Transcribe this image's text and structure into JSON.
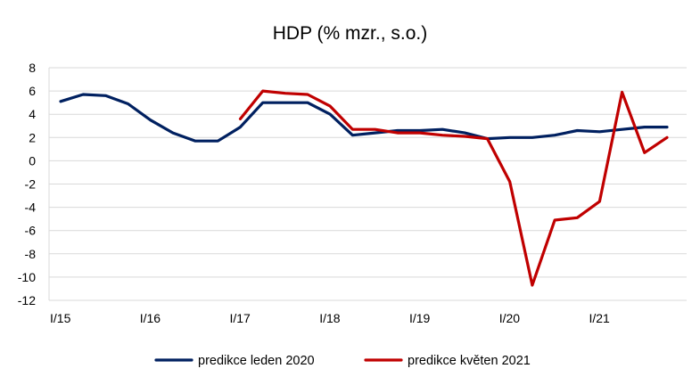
{
  "chart_data": {
    "type": "line",
    "title": "HDP (% mzr., s.o.)",
    "xlabel": "",
    "ylabel": "",
    "ylim": [
      -12,
      8
    ],
    "yticks": [
      8,
      6,
      4,
      2,
      0,
      -2,
      -4,
      -6,
      -8,
      -10,
      -12
    ],
    "grid": true,
    "legend_position": "bottom",
    "categories": [
      "I/15",
      "II/15",
      "III/15",
      "IV/15",
      "I/16",
      "II/16",
      "III/16",
      "IV/16",
      "I/17",
      "II/17",
      "III/17",
      "IV/17",
      "I/18",
      "II/18",
      "III/18",
      "IV/18",
      "I/19",
      "II/19",
      "III/19",
      "IV/19",
      "I/20",
      "II/20",
      "III/20",
      "IV/20",
      "I/21",
      "II/21",
      "III/21",
      "IV/21"
    ],
    "x_tick_labels": [
      {
        "index": 0,
        "label": "I/15"
      },
      {
        "index": 4,
        "label": "I/16"
      },
      {
        "index": 8,
        "label": "I/17"
      },
      {
        "index": 12,
        "label": "I/18"
      },
      {
        "index": 16,
        "label": "I/19"
      },
      {
        "index": 20,
        "label": "I/20"
      },
      {
        "index": 24,
        "label": "I/21"
      }
    ],
    "series": [
      {
        "name": "predikce leden 2020",
        "color": "#002060",
        "values": [
          5.1,
          5.7,
          5.6,
          4.9,
          3.5,
          2.4,
          1.7,
          1.7,
          2.9,
          5.0,
          5.0,
          5.0,
          4.0,
          2.2,
          2.4,
          2.6,
          2.6,
          2.7,
          2.4,
          1.9,
          2.0,
          2.0,
          2.2,
          2.6,
          2.5,
          2.7,
          2.9,
          2.9
        ]
      },
      {
        "name": "predikce květen 2021",
        "color": "#c00000",
        "values": [
          null,
          null,
          null,
          null,
          null,
          null,
          null,
          null,
          3.6,
          6.0,
          5.8,
          5.7,
          4.7,
          2.7,
          2.7,
          2.4,
          2.4,
          2.2,
          2.1,
          1.9,
          -1.8,
          -10.7,
          -5.1,
          -4.9,
          -3.5,
          5.9,
          0.7,
          2.0
        ]
      }
    ]
  }
}
